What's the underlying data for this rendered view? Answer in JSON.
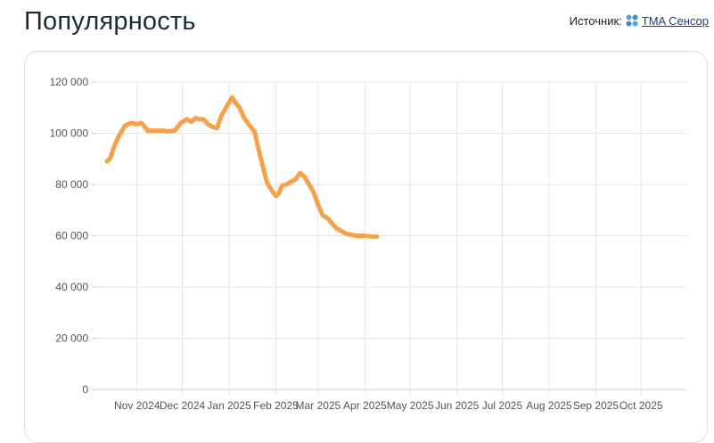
{
  "header": {
    "title": "Популярность",
    "source_label": "Источник:",
    "source_link": "TMA Сенсор",
    "source_icon": "tma-logo-icon"
  },
  "chart_data": {
    "type": "line",
    "title": "",
    "xlabel": "",
    "ylabel": "",
    "ylim": [
      0,
      120000
    ],
    "yticks": [
      0,
      20000,
      40000,
      60000,
      80000,
      100000,
      120000
    ],
    "ytick_labels": [
      "0",
      "20 000",
      "40 000",
      "60 000",
      "80 000",
      "100 000",
      "120 000"
    ],
    "xlim": [
      "2024-10-05",
      "2025-10-31"
    ],
    "xticks": [
      "2024-11-01",
      "2024-12-01",
      "2025-01-01",
      "2025-02-01",
      "2025-03-01",
      "2025-04-01",
      "2025-05-01",
      "2025-06-01",
      "2025-07-01",
      "2025-08-01",
      "2025-09-01",
      "2025-10-01"
    ],
    "xtick_labels": [
      "Nov 2024",
      "Dec 2024",
      "Jan 2025",
      "Feb 2025",
      "Mar 2025",
      "Apr 2025",
      "May 2025",
      "Jun 2025",
      "Jul 2025",
      "Aug 2025",
      "Sep 2025",
      "Oct 2025"
    ],
    "grid": true,
    "line_color": "#f7a04a",
    "series": [
      {
        "name": "",
        "x": [
          "2024-10-12",
          "2024-10-14",
          "2024-10-17",
          "2024-10-20",
          "2024-10-24",
          "2024-10-28",
          "2024-11-01",
          "2024-11-04",
          "2024-11-08",
          "2024-11-11",
          "2024-11-15",
          "2024-11-18",
          "2024-11-22",
          "2024-11-26",
          "2024-11-30",
          "2024-12-04",
          "2024-12-07",
          "2024-12-10",
          "2024-12-12",
          "2024-12-15",
          "2024-12-18",
          "2024-12-21",
          "2024-12-24",
          "2024-12-27",
          "2024-12-30",
          "2025-01-03",
          "2025-01-05",
          "2025-01-08",
          "2025-01-11",
          "2025-01-14",
          "2025-01-16",
          "2025-01-18",
          "2025-01-20",
          "2025-01-23",
          "2025-01-26",
          "2025-01-29",
          "2025-02-01",
          "2025-02-03",
          "2025-02-05",
          "2025-02-08",
          "2025-02-11",
          "2025-02-14",
          "2025-02-17",
          "2025-02-20",
          "2025-02-23",
          "2025-02-26",
          "2025-03-01",
          "2025-03-04",
          "2025-03-07",
          "2025-03-10",
          "2025-03-13",
          "2025-03-16",
          "2025-03-19",
          "2025-03-21",
          "2025-03-23",
          "2025-03-26",
          "2025-03-29",
          "2025-04-01",
          "2025-04-04",
          "2025-04-07",
          "2025-04-09"
        ],
        "y": [
          89000,
          90000,
          95000,
          99000,
          103000,
          104000,
          103500,
          104000,
          101000,
          101000,
          101000,
          101000,
          100800,
          101000,
          104000,
          105500,
          104500,
          106000,
          105500,
          105500,
          103500,
          102500,
          102000,
          107000,
          110000,
          114000,
          112000,
          110000,
          106000,
          103500,
          102000,
          100500,
          95000,
          88000,
          81000,
          78000,
          75500,
          76500,
          79500,
          80000,
          81000,
          82000,
          84500,
          83000,
          80000,
          77000,
          72000,
          68000,
          67000,
          65000,
          63000,
          62000,
          61000,
          60500,
          60500,
          60000,
          60000,
          60000,
          59800,
          59700,
          59700
        ]
      }
    ]
  }
}
